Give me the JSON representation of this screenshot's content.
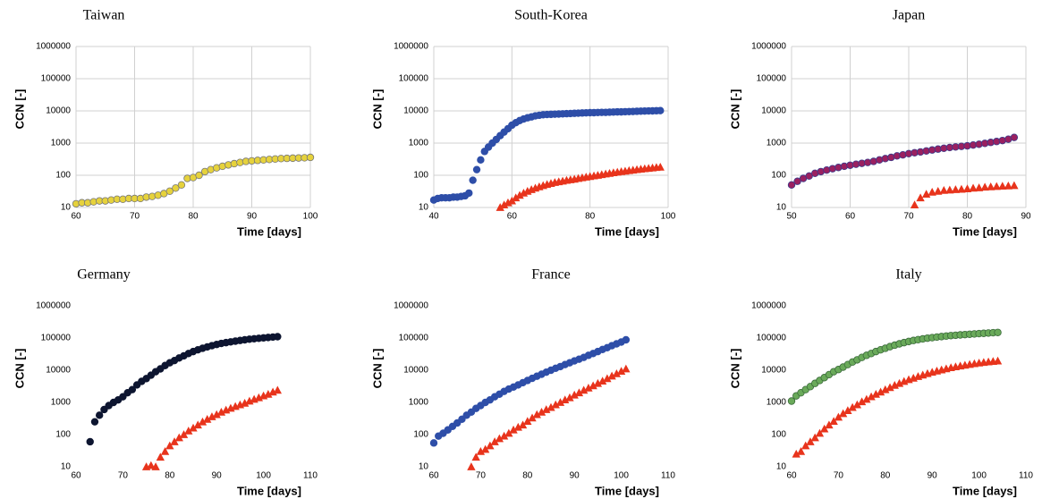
{
  "chart_data": [
    {
      "type": "scatter",
      "title": "Taiwan",
      "ylabel": "CCN [-]",
      "xlabel": "Time [days]",
      "yscale": "log",
      "grid": true,
      "xlim": [
        60,
        100
      ],
      "xticks": [
        60,
        70,
        80,
        90,
        100
      ],
      "ylim": [
        10,
        1000000
      ],
      "yticks": [
        10,
        100,
        1000,
        10000,
        100000,
        1000000
      ],
      "series": [
        {
          "color": "#e6d23c",
          "edgecolor": "#777777",
          "marker": "circle",
          "x": [
            60,
            61,
            62,
            63,
            64,
            65,
            66,
            67,
            68,
            69,
            70,
            71,
            72,
            73,
            74,
            75,
            76,
            77,
            78,
            79,
            80,
            81,
            82,
            83,
            84,
            85,
            86,
            87,
            88,
            89,
            90,
            91,
            92,
            93,
            94,
            95,
            96,
            97,
            98,
            99,
            100
          ],
          "values": [
            13,
            14,
            14,
            15,
            16,
            16,
            17,
            18,
            18,
            19,
            19,
            19,
            21,
            22,
            24,
            27,
            32,
            40,
            50,
            80,
            85,
            100,
            130,
            150,
            170,
            190,
            210,
            230,
            250,
            270,
            280,
            290,
            300,
            310,
            320,
            330,
            335,
            340,
            345,
            350,
            360
          ]
        }
      ]
    },
    {
      "type": "scatter",
      "title": "South-Korea",
      "ylabel": "CCN [-]",
      "xlabel": "Time [days]",
      "yscale": "log",
      "grid": true,
      "xlim": [
        40,
        100
      ],
      "xticks": [
        40,
        60,
        80,
        100
      ],
      "ylim": [
        10,
        1000000
      ],
      "yticks": [
        10,
        100,
        1000,
        10000,
        100000,
        1000000
      ],
      "series": [
        {
          "color": "#2e4ea8",
          "edgecolor": "#2e4ea8",
          "marker": "circle",
          "x": [
            40,
            41,
            42,
            43,
            44,
            45,
            46,
            47,
            48,
            49,
            50,
            51,
            52,
            53,
            54,
            55,
            56,
            57,
            58,
            59,
            60,
            61,
            62,
            63,
            64,
            65,
            66,
            67,
            68,
            69,
            70,
            71,
            72,
            73,
            74,
            75,
            76,
            77,
            78,
            79,
            80,
            81,
            82,
            83,
            84,
            85,
            86,
            87,
            88,
            89,
            90,
            91,
            92,
            93,
            94,
            95,
            96,
            97,
            98
          ],
          "values": [
            17,
            19,
            20,
            20,
            20,
            21,
            21,
            22,
            23,
            28,
            70,
            150,
            300,
            550,
            750,
            1000,
            1300,
            1700,
            2200,
            2800,
            3600,
            4300,
            5000,
            5600,
            6100,
            6500,
            7000,
            7300,
            7600,
            7700,
            7800,
            7900,
            8000,
            8100,
            8200,
            8300,
            8400,
            8500,
            8600,
            8700,
            8800,
            8800,
            8900,
            9000,
            9000,
            9100,
            9200,
            9300,
            9300,
            9400,
            9500,
            9600,
            9700,
            9800,
            9900,
            9950,
            10000,
            10100,
            10200
          ]
        },
        {
          "color": "#e8341c",
          "edgecolor": "#e8341c",
          "marker": "triangle",
          "x": [
            57,
            58,
            59,
            60,
            61,
            62,
            63,
            64,
            65,
            66,
            67,
            68,
            69,
            70,
            71,
            72,
            73,
            74,
            75,
            76,
            77,
            78,
            79,
            80,
            81,
            82,
            83,
            84,
            85,
            86,
            87,
            88,
            89,
            90,
            91,
            92,
            93,
            94,
            95,
            96,
            97,
            98
          ],
          "values": [
            10,
            12,
            14,
            16,
            20,
            24,
            28,
            32,
            36,
            40,
            44,
            48,
            52,
            56,
            60,
            63,
            66,
            70,
            73,
            76,
            80,
            84,
            88,
            92,
            96,
            100,
            105,
            110,
            115,
            120,
            125,
            130,
            135,
            140,
            145,
            150,
            155,
            160,
            165,
            170,
            175,
            180
          ]
        }
      ]
    },
    {
      "type": "scatter",
      "title": "Japan",
      "ylabel": "CCN [-]",
      "xlabel": "Time [days]",
      "yscale": "log",
      "grid": true,
      "xlim": [
        50,
        90
      ],
      "xticks": [
        50,
        60,
        70,
        80,
        90
      ],
      "ylim": [
        10,
        1000000
      ],
      "yticks": [
        10,
        100,
        1000,
        10000,
        100000,
        1000000
      ],
      "series": [
        {
          "color": "#9a2060",
          "edgecolor": "#3a3a8a",
          "marker": "circle",
          "x": [
            50,
            51,
            52,
            53,
            54,
            55,
            56,
            57,
            58,
            59,
            60,
            61,
            62,
            63,
            64,
            65,
            66,
            67,
            68,
            69,
            70,
            71,
            72,
            73,
            74,
            75,
            76,
            77,
            78,
            79,
            80,
            81,
            82,
            83,
            84,
            85,
            86,
            87,
            88
          ],
          "values": [
            50,
            65,
            80,
            95,
            115,
            130,
            145,
            160,
            175,
            190,
            205,
            220,
            235,
            250,
            270,
            300,
            330,
            360,
            400,
            430,
            470,
            500,
            530,
            570,
            610,
            650,
            690,
            730,
            760,
            790,
            820,
            870,
            920,
            980,
            1050,
            1120,
            1200,
            1320,
            1500
          ]
        },
        {
          "color": "#e8341c",
          "edgecolor": "#e8341c",
          "marker": "triangle",
          "x": [
            71,
            72,
            73,
            74,
            75,
            76,
            77,
            78,
            79,
            80,
            81,
            82,
            83,
            84,
            85,
            86,
            87,
            88
          ],
          "values": [
            12,
            20,
            26,
            30,
            32,
            34,
            35,
            36,
            37,
            38,
            40,
            41,
            43,
            44,
            45,
            46,
            47,
            48
          ]
        }
      ]
    },
    {
      "type": "scatter",
      "title": "Germany",
      "ylabel": "CCN [-]",
      "xlabel": "Time [days]",
      "yscale": "log",
      "grid": false,
      "xlim": [
        60,
        110
      ],
      "xticks": [
        60,
        70,
        80,
        90,
        100,
        110
      ],
      "ylim": [
        10,
        1000000
      ],
      "yticks": [
        10,
        100,
        1000,
        10000,
        100000,
        1000000
      ],
      "series": [
        {
          "color": "#0d1530",
          "edgecolor": "#0d1530",
          "marker": "circle",
          "x": [
            63,
            64,
            65,
            66,
            67,
            68,
            69,
            70,
            71,
            72,
            73,
            74,
            75,
            76,
            77,
            78,
            79,
            80,
            81,
            82,
            83,
            84,
            85,
            86,
            87,
            88,
            89,
            90,
            91,
            92,
            93,
            94,
            95,
            96,
            97,
            98,
            99,
            100,
            101,
            102,
            103
          ],
          "values": [
            60,
            250,
            400,
            600,
            800,
            1000,
            1200,
            1500,
            2000,
            2500,
            3500,
            4500,
            5500,
            7000,
            9000,
            11000,
            14000,
            17000,
            20000,
            24000,
            28000,
            33000,
            38000,
            43000,
            48000,
            53000,
            58000,
            63000,
            68000,
            72000,
            76000,
            80000,
            84000,
            88000,
            92000,
            95000,
            98000,
            101000,
            104000,
            107000,
            110000
          ]
        },
        {
          "color": "#e8341c",
          "edgecolor": "#e8341c",
          "marker": "triangle",
          "x": [
            75,
            76,
            77,
            78,
            79,
            80,
            81,
            82,
            83,
            84,
            85,
            86,
            87,
            88,
            89,
            90,
            91,
            92,
            93,
            94,
            95,
            96,
            97,
            98,
            99,
            100,
            101,
            102,
            103
          ],
          "values": [
            10,
            11,
            10,
            20,
            30,
            45,
            60,
            80,
            100,
            130,
            160,
            200,
            250,
            300,
            360,
            420,
            500,
            580,
            660,
            750,
            850,
            950,
            1100,
            1250,
            1400,
            1600,
            1800,
            2100,
            2400
          ]
        }
      ]
    },
    {
      "type": "scatter",
      "title": "France",
      "ylabel": "CCN [-]",
      "xlabel": "Time [days]",
      "yscale": "log",
      "grid": false,
      "xlim": [
        60,
        110
      ],
      "xticks": [
        60,
        70,
        80,
        90,
        100,
        110
      ],
      "ylim": [
        10,
        1000000
      ],
      "yticks": [
        10,
        100,
        1000,
        10000,
        100000,
        1000000
      ],
      "series": [
        {
          "color": "#2e4ea8",
          "edgecolor": "#2e4ea8",
          "marker": "circle",
          "x": [
            60,
            61,
            62,
            63,
            64,
            65,
            66,
            67,
            68,
            69,
            70,
            71,
            72,
            73,
            74,
            75,
            76,
            77,
            78,
            79,
            80,
            81,
            82,
            83,
            84,
            85,
            86,
            87,
            88,
            89,
            90,
            91,
            92,
            93,
            94,
            95,
            96,
            97,
            98,
            99,
            100,
            101
          ],
          "values": [
            55,
            90,
            110,
            140,
            180,
            230,
            300,
            400,
            500,
            650,
            800,
            1000,
            1200,
            1500,
            1800,
            2200,
            2600,
            3000,
            3500,
            4100,
            4800,
            5600,
            6500,
            7500,
            8700,
            10000,
            11500,
            13000,
            15000,
            17000,
            19500,
            22000,
            25000,
            29000,
            33000,
            38000,
            44000,
            50000,
            58000,
            66000,
            75000,
            88000
          ]
        },
        {
          "color": "#e8341c",
          "edgecolor": "#e8341c",
          "marker": "triangle",
          "x": [
            68,
            69,
            70,
            71,
            72,
            73,
            74,
            75,
            76,
            77,
            78,
            79,
            80,
            81,
            82,
            83,
            84,
            85,
            86,
            87,
            88,
            89,
            90,
            91,
            92,
            93,
            94,
            95,
            96,
            97,
            98,
            99,
            100,
            101
          ],
          "values": [
            10,
            20,
            30,
            35,
            45,
            60,
            75,
            90,
            110,
            140,
            170,
            200,
            260,
            330,
            420,
            500,
            600,
            700,
            850,
            1000,
            1200,
            1400,
            1700,
            2000,
            2400,
            2800,
            3300,
            3900,
            4600,
            5500,
            6600,
            7800,
            9300,
            11000
          ]
        }
      ]
    },
    {
      "type": "scatter",
      "title": "Italy",
      "ylabel": "CCN [-]",
      "xlabel": "Time [days]",
      "yscale": "log",
      "grid": false,
      "xlim": [
        60,
        110
      ],
      "xticks": [
        60,
        70,
        80,
        90,
        100,
        110
      ],
      "ylim": [
        10,
        1000000
      ],
      "yticks": [
        10,
        100,
        1000,
        10000,
        100000,
        1000000
      ],
      "series": [
        {
          "color": "#6aaa5a",
          "edgecolor": "#3a6a3a",
          "marker": "circle",
          "x": [
            60,
            61,
            62,
            63,
            64,
            65,
            66,
            67,
            68,
            69,
            70,
            71,
            72,
            73,
            74,
            75,
            76,
            77,
            78,
            79,
            80,
            81,
            82,
            83,
            84,
            85,
            86,
            87,
            88,
            89,
            90,
            91,
            92,
            93,
            94,
            95,
            96,
            97,
            98,
            99,
            100,
            101,
            102,
            103,
            104
          ],
          "values": [
            1100,
            1600,
            2000,
            2500,
            3100,
            3900,
            4800,
            5900,
            7300,
            9000,
            10500,
            12500,
            15000,
            18000,
            21000,
            25000,
            29000,
            33000,
            38000,
            43000,
            48000,
            54000,
            60000,
            66000,
            72000,
            78000,
            84000,
            89000,
            94000,
            99000,
            103000,
            107000,
            111000,
            115000,
            119000,
            122000,
            125000,
            128000,
            131000,
            134000,
            137000,
            140000,
            143000,
            146000,
            149000
          ]
        },
        {
          "color": "#e8341c",
          "edgecolor": "#e8341c",
          "marker": "triangle",
          "x": [
            61,
            62,
            63,
            64,
            65,
            66,
            67,
            68,
            69,
            70,
            71,
            72,
            73,
            74,
            75,
            76,
            77,
            78,
            79,
            80,
            81,
            82,
            83,
            84,
            85,
            86,
            87,
            88,
            89,
            90,
            91,
            92,
            93,
            94,
            95,
            96,
            97,
            98,
            99,
            100,
            101,
            102,
            103,
            104
          ],
          "values": [
            25,
            30,
            45,
            60,
            80,
            110,
            150,
            200,
            260,
            350,
            450,
            560,
            700,
            850,
            1050,
            1250,
            1500,
            1800,
            2100,
            2500,
            2900,
            3400,
            3900,
            4500,
            5100,
            5700,
            6400,
            7100,
            7900,
            8700,
            9500,
            10300,
            11100,
            12000,
            12800,
            13600,
            14400,
            15200,
            16000,
            16800,
            17500,
            18200,
            18900,
            19500
          ]
        }
      ]
    }
  ]
}
